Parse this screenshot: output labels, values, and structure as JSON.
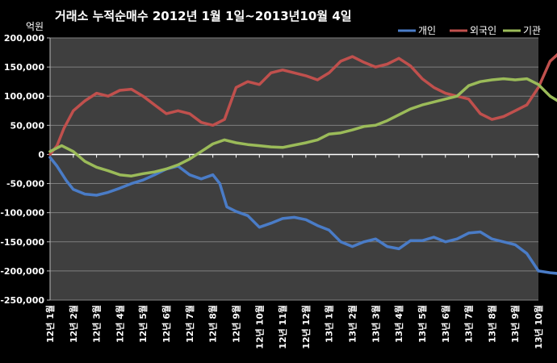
{
  "chart_data": {
    "type": "line",
    "title": "거래소  누적순매수 2012년 1월 1일~2013년10월 4일",
    "unit_label": "억원",
    "ylim": [
      -250000,
      200000
    ],
    "yticks": [
      200000,
      150000,
      100000,
      50000,
      0,
      -50000,
      -100000,
      -150000,
      -200000,
      -250000
    ],
    "ytick_labels": [
      "200,000",
      "150,000",
      "100,000",
      "50,000",
      "0",
      "-50,000",
      "-100,000",
      "-150,000",
      "-200,000",
      "-250,000"
    ],
    "categories": [
      "12년 1월",
      "12년 2월",
      "12년 3월",
      "12년 4월",
      "12년 5월",
      "12년 6월",
      "12년 7월",
      "12년 8월",
      "12년 9월",
      "12년 10월",
      "12년 11월",
      "12년 12월",
      "13년 1월",
      "13년 2월",
      "13년 3월",
      "13년 4월",
      "13년 5월",
      "13년 6월",
      "13년 7월",
      "13년 8월",
      "13년 9월",
      "13년 10월"
    ],
    "legend_position": "top-right",
    "grid": true,
    "series": [
      {
        "name": "개인",
        "color": "#4a7cc7",
        "points": [
          [
            0,
            -5000
          ],
          [
            0.3,
            -20000
          ],
          [
            0.7,
            -45000
          ],
          [
            1,
            -60000
          ],
          [
            1.5,
            -68000
          ],
          [
            2,
            -70000
          ],
          [
            2.5,
            -65000
          ],
          [
            3,
            -58000
          ],
          [
            3.5,
            -50000
          ],
          [
            4,
            -44000
          ],
          [
            4.5,
            -35000
          ],
          [
            5,
            -25000
          ],
          [
            5.5,
            -20000
          ],
          [
            6,
            -35000
          ],
          [
            6.5,
            -42000
          ],
          [
            7,
            -35000
          ],
          [
            7.3,
            -50000
          ],
          [
            7.6,
            -90000
          ],
          [
            8,
            -98000
          ],
          [
            8.5,
            -105000
          ],
          [
            9,
            -125000
          ],
          [
            9.5,
            -118000
          ],
          [
            10,
            -110000
          ],
          [
            10.5,
            -108000
          ],
          [
            11,
            -112000
          ],
          [
            11.5,
            -122000
          ],
          [
            12,
            -130000
          ],
          [
            12.5,
            -150000
          ],
          [
            13,
            -158000
          ],
          [
            13.5,
            -150000
          ],
          [
            14,
            -145000
          ],
          [
            14.5,
            -158000
          ],
          [
            15,
            -162000
          ],
          [
            15.5,
            -148000
          ],
          [
            16,
            -148000
          ],
          [
            16.5,
            -142000
          ],
          [
            17,
            -150000
          ],
          [
            17.5,
            -145000
          ],
          [
            18,
            -135000
          ],
          [
            18.5,
            -133000
          ],
          [
            19,
            -145000
          ],
          [
            19.5,
            -150000
          ],
          [
            20,
            -155000
          ],
          [
            20.5,
            -170000
          ],
          [
            21,
            -200000
          ],
          [
            21.5,
            -203000
          ],
          [
            22,
            -205000
          ]
        ]
      },
      {
        "name": "외국인",
        "color": "#c0504d",
        "points": [
          [
            0,
            0
          ],
          [
            0.3,
            15000
          ],
          [
            0.6,
            45000
          ],
          [
            1,
            75000
          ],
          [
            1.5,
            92000
          ],
          [
            2,
            105000
          ],
          [
            2.5,
            100000
          ],
          [
            3,
            110000
          ],
          [
            3.5,
            112000
          ],
          [
            4,
            100000
          ],
          [
            4.5,
            85000
          ],
          [
            5,
            70000
          ],
          [
            5.5,
            75000
          ],
          [
            6,
            70000
          ],
          [
            6.5,
            55000
          ],
          [
            7,
            50000
          ],
          [
            7.5,
            60000
          ],
          [
            8,
            115000
          ],
          [
            8.5,
            125000
          ],
          [
            9,
            120000
          ],
          [
            9.5,
            140000
          ],
          [
            10,
            145000
          ],
          [
            10.5,
            140000
          ],
          [
            11,
            135000
          ],
          [
            11.5,
            128000
          ],
          [
            12,
            140000
          ],
          [
            12.5,
            160000
          ],
          [
            13,
            168000
          ],
          [
            13.5,
            158000
          ],
          [
            14,
            150000
          ],
          [
            14.5,
            155000
          ],
          [
            15,
            165000
          ],
          [
            15.5,
            152000
          ],
          [
            16,
            130000
          ],
          [
            16.5,
            115000
          ],
          [
            17,
            105000
          ],
          [
            17.5,
            100000
          ],
          [
            18,
            95000
          ],
          [
            18.5,
            70000
          ],
          [
            19,
            60000
          ],
          [
            19.5,
            65000
          ],
          [
            20,
            75000
          ],
          [
            20.5,
            85000
          ],
          [
            21,
            115000
          ],
          [
            21.5,
            160000
          ],
          [
            22,
            178000
          ]
        ]
      },
      {
        "name": "기관",
        "color": "#9bbb59",
        "points": [
          [
            0,
            5000
          ],
          [
            0.5,
            15000
          ],
          [
            1,
            5000
          ],
          [
            1.5,
            -12000
          ],
          [
            2,
            -22000
          ],
          [
            2.5,
            -28000
          ],
          [
            3,
            -35000
          ],
          [
            3.5,
            -37000
          ],
          [
            4,
            -33000
          ],
          [
            4.5,
            -30000
          ],
          [
            5,
            -25000
          ],
          [
            5.5,
            -18000
          ],
          [
            6,
            -8000
          ],
          [
            6.5,
            5000
          ],
          [
            7,
            18000
          ],
          [
            7.5,
            25000
          ],
          [
            8,
            20000
          ],
          [
            8.5,
            17000
          ],
          [
            9,
            15000
          ],
          [
            9.5,
            13000
          ],
          [
            10,
            12000
          ],
          [
            10.5,
            16000
          ],
          [
            11,
            20000
          ],
          [
            11.5,
            25000
          ],
          [
            12,
            35000
          ],
          [
            12.5,
            37000
          ],
          [
            13,
            42000
          ],
          [
            13.5,
            48000
          ],
          [
            14,
            50000
          ],
          [
            14.5,
            58000
          ],
          [
            15,
            68000
          ],
          [
            15.5,
            78000
          ],
          [
            16,
            85000
          ],
          [
            16.5,
            90000
          ],
          [
            17,
            95000
          ],
          [
            17.5,
            100000
          ],
          [
            18,
            118000
          ],
          [
            18.5,
            125000
          ],
          [
            19,
            128000
          ],
          [
            19.5,
            130000
          ],
          [
            20,
            128000
          ],
          [
            20.5,
            130000
          ],
          [
            21,
            120000
          ],
          [
            21.5,
            100000
          ],
          [
            22,
            88000
          ]
        ]
      }
    ]
  }
}
